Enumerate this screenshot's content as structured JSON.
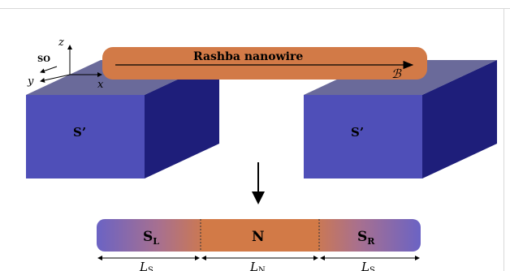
{
  "axes": {
    "z_label": "z",
    "y_label": "y",
    "x_label": "x",
    "so_label": "SO"
  },
  "nanowire": {
    "title": "Rashba nanowire",
    "field_label": "ℬ",
    "color": "#D27A47"
  },
  "superconductors": {
    "left_label": "S’",
    "right_label": "S’",
    "front_color": "#4F4FB8",
    "top_color": "#6A6A9A",
    "side_color": "#1E1E7A"
  },
  "junction": {
    "left_label": "S",
    "left_sub": "L",
    "middle_label": "N",
    "right_label": "S",
    "right_sub": "R",
    "segment_color": "#D27A47",
    "sc_color": "#6B63C4"
  },
  "lengths": {
    "left": "L",
    "left_sub": "S",
    "middle": "L",
    "middle_sub": "N",
    "right": "L",
    "right_sub": "S"
  }
}
